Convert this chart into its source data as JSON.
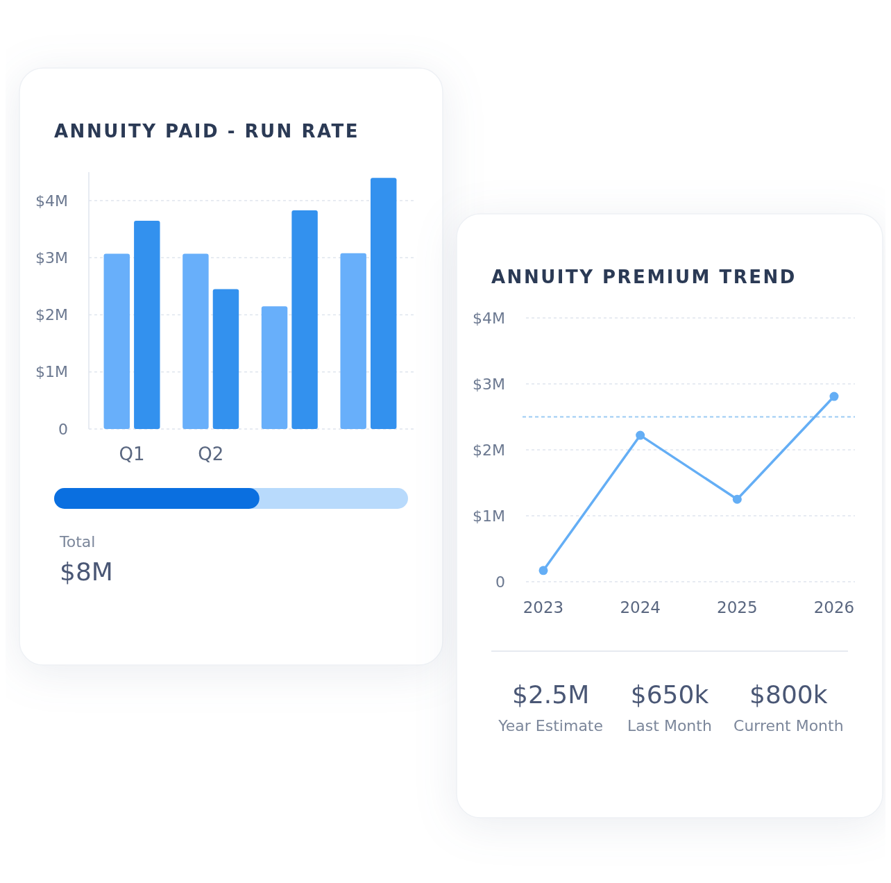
{
  "chart_data": [
    {
      "type": "bar",
      "title": "ANNUITY PAID - RUN RATE",
      "categories": [
        "Q1",
        "Q2",
        null,
        null
      ],
      "series": [
        {
          "color": "#68affa",
          "values": [
            3.07,
            3.07,
            2.15,
            3.08
          ]
        },
        {
          "color": "#3391ee",
          "values": [
            3.65,
            2.45,
            3.83,
            4.4
          ]
        }
      ],
      "ylim": [
        0,
        4.5
      ],
      "yticks": [
        0,
        {
          "value": 1,
          "label": "$1M"
        },
        {
          "value": 2,
          "label": "$2M"
        },
        {
          "value": 3,
          "label": "$3M"
        },
        {
          "value": 4,
          "label": "$4M"
        }
      ],
      "grid": "y",
      "annotations": [
        "Total",
        "$8M"
      ]
    },
    {
      "type": "line",
      "title": "ANNUITY PREMIUM TREND",
      "categories": [
        "2023",
        "2024",
        "2025",
        "2026"
      ],
      "series": [
        {
          "color": "#64aef5",
          "values": [
            0.17,
            2.22,
            1.25,
            2.81
          ]
        }
      ],
      "marker": "circle",
      "ylim": [
        0,
        4
      ],
      "yticks": [
        0,
        {
          "value": 1,
          "label": "$1M"
        },
        {
          "value": 2,
          "label": "$2M"
        },
        {
          "value": 3,
          "label": "$3M"
        },
        {
          "value": 4,
          "label": "$4M"
        }
      ],
      "grid": "y",
      "ref_lines": [
        {
          "axis": "y",
          "value": 2.5,
          "color": "#9ccbf3",
          "line_style": "dashed"
        }
      ],
      "annotations": [
        "$2.5M",
        "Year Estimate",
        "$650k",
        "Last Month",
        "$800k",
        "Current Month"
      ]
    }
  ]
}
